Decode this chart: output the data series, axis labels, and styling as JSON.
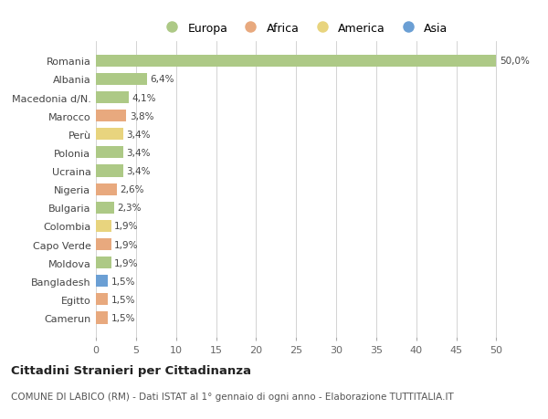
{
  "countries": [
    "Romania",
    "Albania",
    "Macedonia d/N.",
    "Marocco",
    "Perù",
    "Polonia",
    "Ucraina",
    "Nigeria",
    "Bulgaria",
    "Colombia",
    "Capo Verde",
    "Moldova",
    "Bangladesh",
    "Egitto",
    "Camerun"
  ],
  "values": [
    50.0,
    6.4,
    4.1,
    3.8,
    3.4,
    3.4,
    3.4,
    2.6,
    2.3,
    1.9,
    1.9,
    1.9,
    1.5,
    1.5,
    1.5
  ],
  "labels": [
    "50,0%",
    "6,4%",
    "4,1%",
    "3,8%",
    "3,4%",
    "3,4%",
    "3,4%",
    "2,6%",
    "2,3%",
    "1,9%",
    "1,9%",
    "1,9%",
    "1,5%",
    "1,5%",
    "1,5%"
  ],
  "continents": [
    "Europa",
    "Europa",
    "Europa",
    "Africa",
    "America",
    "Europa",
    "Europa",
    "Africa",
    "Europa",
    "America",
    "Africa",
    "Europa",
    "Asia",
    "Africa",
    "Africa"
  ],
  "colors": {
    "Europa": "#adc986",
    "Africa": "#e8a97e",
    "America": "#e8d47e",
    "Asia": "#6b9fd4"
  },
  "legend_order": [
    "Europa",
    "Africa",
    "America",
    "Asia"
  ],
  "title": "Cittadini Stranieri per Cittadinanza",
  "subtitle": "COMUNE DI LABICO (RM) - Dati ISTAT al 1° gennaio di ogni anno - Elaborazione TUTTITALIA.IT",
  "xlim": [
    0,
    52
  ],
  "xticks": [
    0,
    5,
    10,
    15,
    20,
    25,
    30,
    35,
    40,
    45,
    50
  ],
  "background_color": "#ffffff",
  "grid_color": "#cccccc"
}
